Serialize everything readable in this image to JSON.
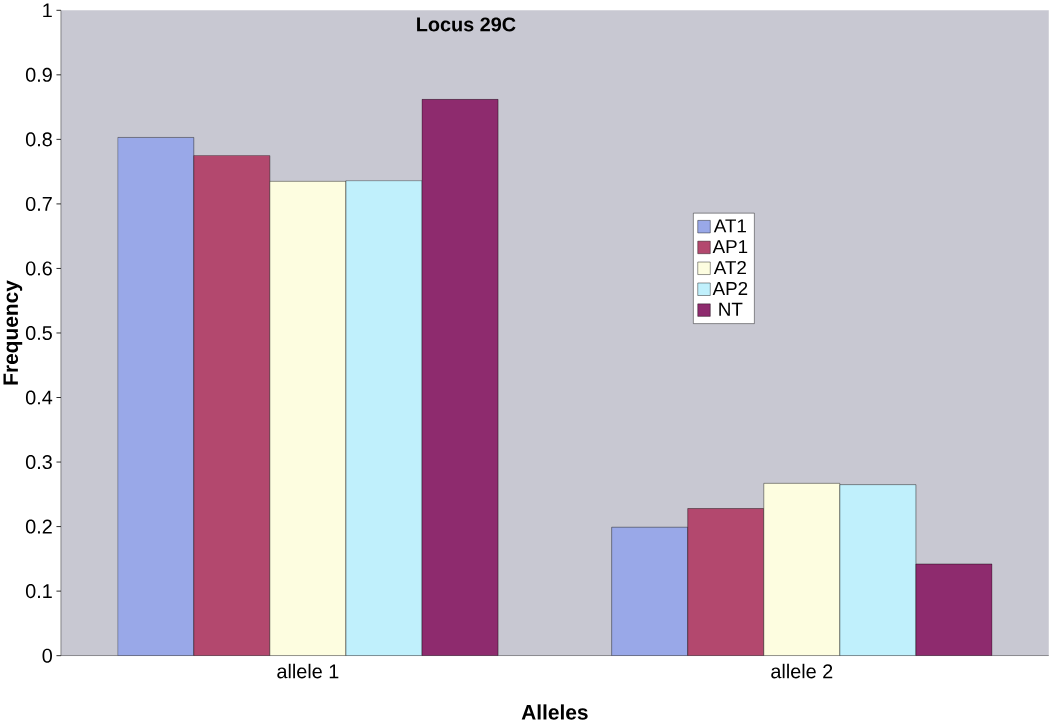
{
  "chart_data": {
    "type": "bar",
    "title": "Locus 29C",
    "xlabel": "Alleles",
    "ylabel": "Frequency",
    "categories": [
      "allele 1",
      "allele 2"
    ],
    "series": [
      {
        "name": "AT1",
        "color": "#99a8e8",
        "values": [
          0.803,
          0.199
        ]
      },
      {
        "name": "AP1",
        "color": "#b3486e",
        "values": [
          0.775,
          0.228
        ]
      },
      {
        "name": "AT2",
        "color": "#fdfde0",
        "values": [
          0.735,
          0.267
        ]
      },
      {
        "name": "AP2",
        "color": "#c0f0fc",
        "values": [
          0.736,
          0.265
        ]
      },
      {
        "name": "NT",
        "color": "#8e2b6e",
        "values": [
          0.862,
          0.142
        ]
      }
    ],
    "ylim": [
      0,
      1
    ],
    "yticks": [
      0,
      0.1,
      0.2,
      0.3,
      0.4,
      0.5,
      0.6,
      0.7,
      0.8,
      0.9,
      1
    ],
    "grid": false,
    "legend": "right"
  }
}
